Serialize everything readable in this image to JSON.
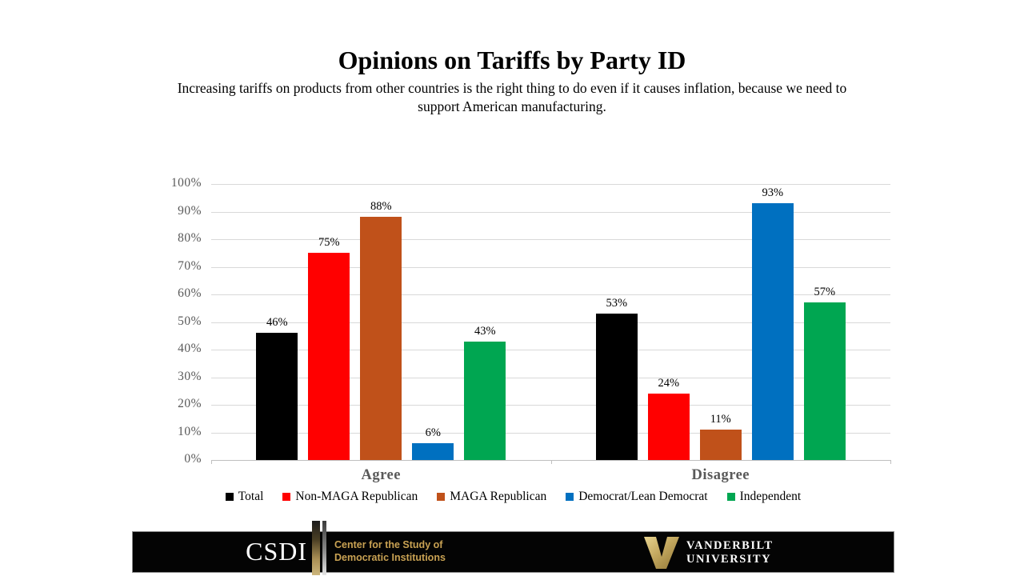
{
  "title": "Opinions on Tariffs by Party ID",
  "subtitle": "Increasing tariffs on products from other countries is the right thing to do even if it causes inflation, because we need to support American manufacturing.",
  "chart_data": {
    "type": "bar",
    "title": "Opinions on Tariffs by Party ID",
    "categories": [
      "Agree",
      "Disagree"
    ],
    "series": [
      {
        "name": "Total",
        "color": "#000000",
        "values": [
          46,
          53
        ]
      },
      {
        "name": "Non-MAGA Republican",
        "color": "#FF0000",
        "values": [
          75,
          24
        ]
      },
      {
        "name": "MAGA Republican",
        "color": "#C0511A",
        "values": [
          88,
          11
        ]
      },
      {
        "name": "Democrat/Lean Democrat",
        "color": "#0070C0",
        "values": [
          6,
          93
        ]
      },
      {
        "name": "Independent",
        "color": "#00A651",
        "values": [
          43,
          57
        ]
      }
    ],
    "y_axis": {
      "min": 0,
      "max": 100,
      "step": 10,
      "labels": [
        "0%",
        "10%",
        "20%",
        "30%",
        "40%",
        "50%",
        "60%",
        "70%",
        "80%",
        "90%",
        "100%"
      ]
    },
    "data_label_suffix": "%",
    "grid": true,
    "legend_position": "bottom",
    "colors": {
      "gridline": "#D9D9D9",
      "axis": "#BFBFBF",
      "axis_label": "#595959",
      "group_label": "#595959",
      "data_label": "#000000"
    }
  },
  "footer": {
    "csdi_acronym": "CSDI",
    "csdi_line1": "Center for the Study of",
    "csdi_line2": "Democratic Institutions",
    "vanderbilt_line1": "VANDERBILT",
    "vanderbilt_line2": "UNIVERSITY",
    "gold": "#C9A253",
    "bar_background": "#040404"
  }
}
